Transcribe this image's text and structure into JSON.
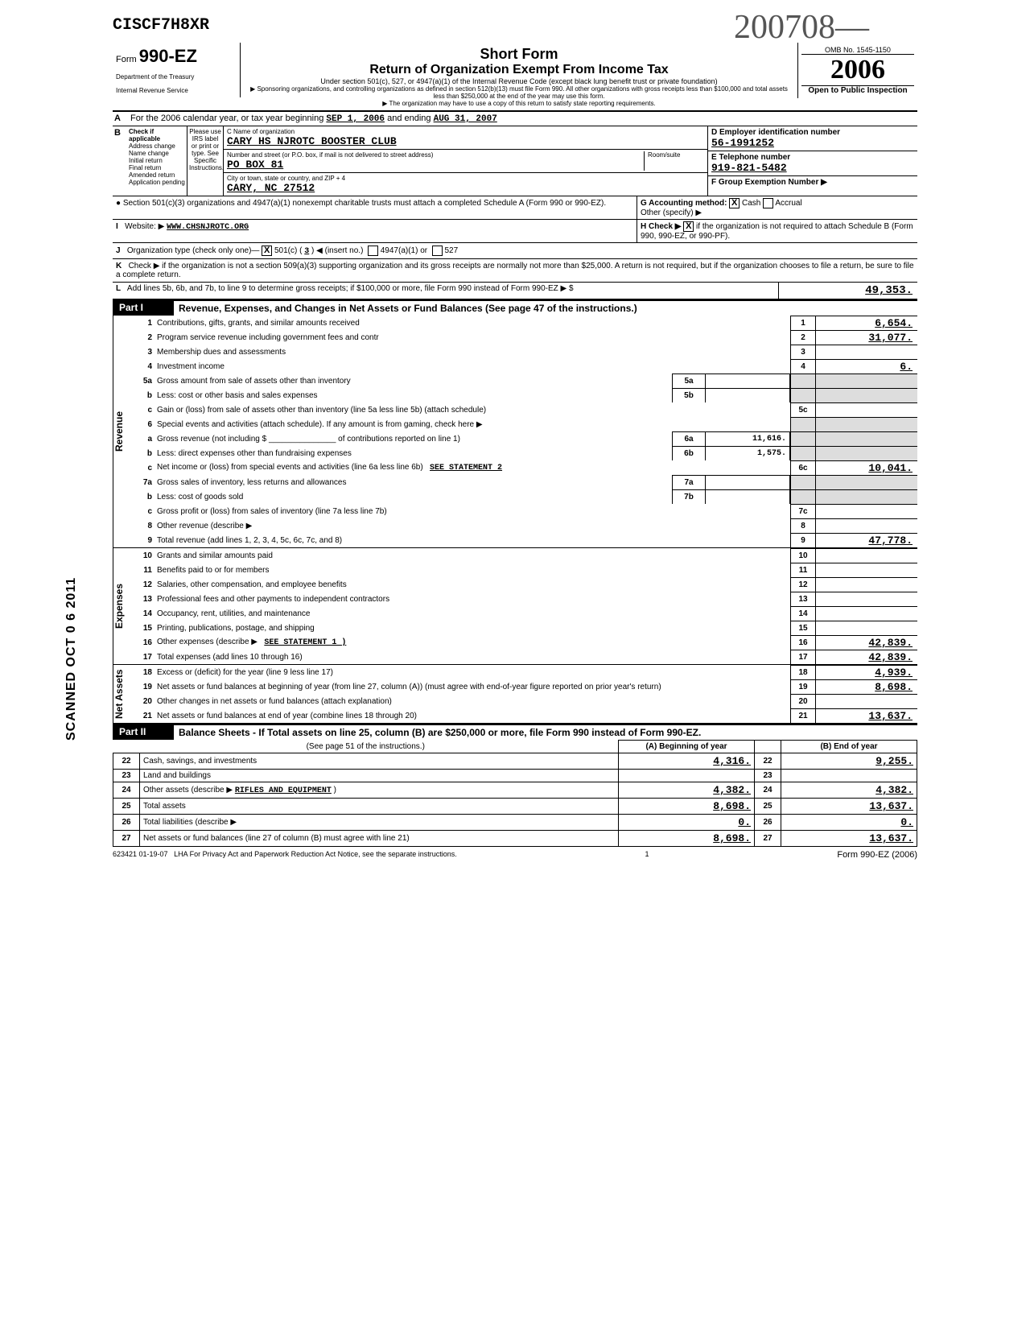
{
  "top_code": "CISCF7H8XR",
  "handwriting": "200708—",
  "scanned_stamp": "SCANNED OCT 0 6 2011",
  "header": {
    "form_label": "Form",
    "form_number": "990-EZ",
    "dept1": "Department of the Treasury",
    "dept2": "Internal Revenue Service",
    "short_form": "Short Form",
    "title": "Return of Organization Exempt From Income Tax",
    "subtitle": "Under section 501(c), 527, or 4947(a)(1) of the Internal Revenue Code (except black lung benefit trust or private foundation)",
    "note1": "▶ Sponsoring organizations, and controlling organizations as defined in section 512(b)(13) must file Form 990. All other organizations with gross receipts less than $100,000 and total assets less than $250,000 at the end of the year may use this form.",
    "note2": "▶ The organization may have to use a copy of this return to satisfy state reporting requirements.",
    "omb": "OMB No. 1545-1150",
    "year": "2006",
    "open": "Open to Public Inspection"
  },
  "line_a": {
    "text": "For the 2006 calendar year, or tax year beginning",
    "begin": "SEP 1, 2006",
    "mid": "and ending",
    "end": "AUG 31, 2007"
  },
  "section_b": {
    "check_header": "Check if applicable",
    "opts": [
      "Address change",
      "Name change",
      "Initial return",
      "Final return",
      "Amended return",
      "Application pending"
    ],
    "use_irs": "Please use IRS label or print or type. See Specific Instructions."
  },
  "org": {
    "name_label": "C Name of organization",
    "name": "CARY HS NJROTC BOOSTER CLUB",
    "addr_label": "Number and street (or P.O. box, if mail is not delivered to street address)",
    "room_label": "Room/suite",
    "addr": "PO BOX 81",
    "city_label": "City or town, state or country, and ZIP + 4",
    "city": "CARY, NC  27512"
  },
  "right": {
    "d_label": "D Employer identification number",
    "d_val": "56-1991252",
    "e_label": "E Telephone number",
    "e_val": "919-821-5482",
    "f_label": "F Group Exemption Number ▶",
    "g_label": "G Accounting method:",
    "g_cash": "Cash",
    "g_accrual": "Accrual",
    "g_other": "Other (specify) ▶",
    "h_label": "H Check ▶",
    "h_text": "if the organization is not required to attach Schedule B (Form 990, 990-EZ, or 990-PF)."
  },
  "bullets": {
    "sched_a": "● Section 501(c)(3) organizations and 4947(a)(1) nonexempt charitable trusts must attach a completed Schedule A (Form 990 or 990-EZ).",
    "i_label": "I",
    "website_label": "Website: ▶",
    "website": "WWW.CHSNJROTC.ORG",
    "j_label": "J",
    "j_text": "Organization type (check only one)—",
    "j_501c": "501(c) (",
    "j_num": "3",
    "j_insert": ") ◀ (insert no.)",
    "j_4947": "4947(a)(1) or",
    "j_527": "527",
    "k_label": "K",
    "k_text": "Check ▶     if the organization is not a section 509(a)(3) supporting organization and its gross receipts are normally not more than $25,000. A return is not required, but if the organization chooses to file a return, be sure to file a complete return.",
    "l_label": "L",
    "l_text": "Add lines 5b, 6b, and 7b, to line 9 to determine gross receipts; if $100,000 or more, file Form 990 instead of Form 990-EZ",
    "l_arrow": "▶  $",
    "l_val": "49,353."
  },
  "part1": {
    "label": "Part I",
    "title": "Revenue, Expenses, and Changes in Net Assets or Fund Balances (See page 47 of the instructions.)",
    "vert_revenue": "Revenue",
    "vert_expenses": "Expenses",
    "vert_netassets": "Net Assets",
    "lines": {
      "1": {
        "desc": "Contributions, gifts, grants, and similar amounts received",
        "val": "6,654."
      },
      "2": {
        "desc": "Program service revenue including government fees and contr",
        "val": "31,077."
      },
      "3": {
        "desc": "Membership dues and assessments",
        "val": ""
      },
      "4": {
        "desc": "Investment income",
        "val": "6."
      },
      "5a": {
        "desc": "Gross amount from sale of assets other than inventory",
        "box": "5a",
        "boxval": ""
      },
      "5b": {
        "desc": "Less: cost or other basis and sales expenses",
        "box": "5b",
        "boxval": ""
      },
      "5c": {
        "desc": "Gain or (loss) from sale of assets other than inventory (line 5a less line 5b) (attach schedule)",
        "val": ""
      },
      "6": {
        "desc": "Special events and activities (attach schedule). If any amount is from gaming, check here ▶"
      },
      "6a": {
        "desc": "Gross revenue (not including $ _______________ of contributions reported on line 1)",
        "box": "6a",
        "boxval": "11,616."
      },
      "6b": {
        "desc": "Less: direct expenses other than fundraising expenses",
        "box": "6b",
        "boxval": "1,575."
      },
      "6c": {
        "desc": "Net income or (loss) from special events and activities (line 6a less line 6b)",
        "stmt": "SEE STATEMENT 2",
        "val": "10,041."
      },
      "7a": {
        "desc": "Gross sales of inventory, less returns and allowances",
        "box": "7a",
        "boxval": ""
      },
      "7b": {
        "desc": "Less: cost of goods sold",
        "box": "7b",
        "boxval": ""
      },
      "7c": {
        "desc": "Gross profit or (loss) from sales of inventory (line 7a less line 7b)",
        "val": ""
      },
      "8": {
        "desc": "Other revenue (describe ▶",
        "val": ""
      },
      "9": {
        "desc": "Total revenue (add lines 1, 2, 3, 4, 5c, 6c, 7c, and 8)",
        "val": "47,778."
      },
      "10": {
        "desc": "Grants and similar amounts paid",
        "val": ""
      },
      "11": {
        "desc": "Benefits paid to or for members",
        "val": ""
      },
      "12": {
        "desc": "Salaries, other compensation, and employee benefits",
        "val": ""
      },
      "13": {
        "desc": "Professional fees and other payments to independent contractors",
        "val": ""
      },
      "14": {
        "desc": "Occupancy, rent, utilities, and maintenance",
        "val": ""
      },
      "15": {
        "desc": "Printing, publications, postage, and shipping",
        "val": ""
      },
      "16": {
        "desc": "Other expenses (describe ▶",
        "stmt": "SEE STATEMENT 1 )",
        "val": "42,839."
      },
      "17": {
        "desc": "Total expenses (add lines 10 through 16)",
        "val": "42,839."
      },
      "18": {
        "desc": "Excess or (deficit) for the year (line 9 less line 17)",
        "val": "4,939."
      },
      "19": {
        "desc": "Net assets or fund balances at beginning of year (from line 27, column (A)) (must agree with end-of-year figure reported on prior year's return)",
        "val": "8,698."
      },
      "20": {
        "desc": "Other changes in net assets or fund balances (attach explanation)",
        "val": ""
      },
      "21": {
        "desc": "Net assets or fund balances at end of year (combine lines 18 through 20)",
        "val": "13,637."
      }
    }
  },
  "part2": {
    "label": "Part II",
    "title": "Balance Sheets - If Total assets on line 25, column (B) are $250,000 or more, file Form 990 instead of Form 990-EZ.",
    "instruction": "(See page 51 of the instructions.)",
    "col_a": "(A) Beginning of year",
    "col_b": "(B) End of year",
    "rows": [
      {
        "num": "22",
        "desc": "Cash, savings, and investments",
        "a": "4,316.",
        "b": "9,255."
      },
      {
        "num": "23",
        "desc": "Land and buildings",
        "a": "",
        "b": ""
      },
      {
        "num": "24",
        "desc": "Other assets (describe ▶",
        "extra": "RIFLES AND EQUIPMENT",
        "a": "4,382.",
        "b": "4,382."
      },
      {
        "num": "25",
        "desc": "Total assets",
        "a": "8,698.",
        "b": "13,637."
      },
      {
        "num": "26",
        "desc": "Total liabilities (describe ▶",
        "a": "0.",
        "b": "0."
      },
      {
        "num": "27",
        "desc": "Net assets or fund balances (line 27 of column (B) must agree with line 21)",
        "a": "8,698.",
        "b": "13,637."
      }
    ]
  },
  "footer": {
    "code": "623421 01-19-07",
    "lha": "LHA   For Privacy Act and Paperwork Reduction Act Notice, see the separate instructions.",
    "page": "1",
    "form": "Form 990-EZ (2006)"
  }
}
